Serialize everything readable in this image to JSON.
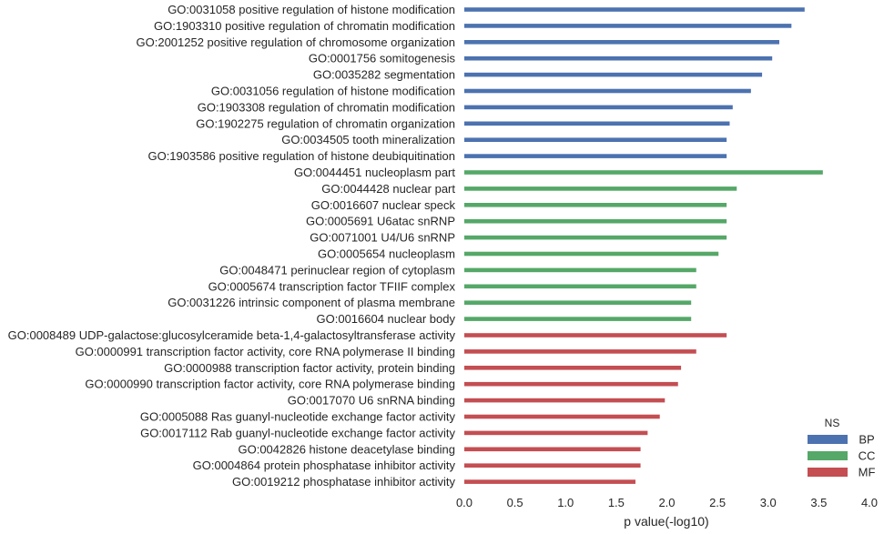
{
  "chart_data": {
    "type": "bar",
    "orientation": "horizontal",
    "xlabel": "p value(-log10)",
    "ylabel": "",
    "xlim": [
      0.0,
      4.0
    ],
    "xticks": [
      "0.0",
      "0.5",
      "1.0",
      "1.5",
      "2.0",
      "2.5",
      "3.0",
      "3.5",
      "4.0"
    ],
    "grid": false,
    "legend": {
      "title": "NS",
      "placement": "bottom-right",
      "entries": [
        {
          "name": "BP",
          "color": "#4C72B0"
        },
        {
          "name": "CC",
          "color": "#55A868"
        },
        {
          "name": "MF",
          "color": "#C44E52"
        }
      ]
    },
    "categories": [
      {
        "label": "GO:0031058 positive regulation of histone modification",
        "ns": "BP",
        "value": 3.36
      },
      {
        "label": "GO:1903310 positive regulation of chromatin modification",
        "ns": "BP",
        "value": 3.23
      },
      {
        "label": "GO:2001252 positive regulation of chromosome organization",
        "ns": "BP",
        "value": 3.11
      },
      {
        "label": "GO:0001756 somitogenesis",
        "ns": "BP",
        "value": 3.04
      },
      {
        "label": "GO:0035282 segmentation",
        "ns": "BP",
        "value": 2.94
      },
      {
        "label": "GO:0031056 regulation of histone modification",
        "ns": "BP",
        "value": 2.83
      },
      {
        "label": "GO:1903308 regulation of chromatin modification",
        "ns": "BP",
        "value": 2.65
      },
      {
        "label": "GO:1902275 regulation of chromatin organization",
        "ns": "BP",
        "value": 2.62
      },
      {
        "label": "GO:0034505 tooth mineralization",
        "ns": "BP",
        "value": 2.59
      },
      {
        "label": "GO:1903586 positive regulation of histone deubiquitination",
        "ns": "BP",
        "value": 2.59
      },
      {
        "label": "GO:0044451 nucleoplasm part",
        "ns": "CC",
        "value": 3.54
      },
      {
        "label": "GO:0044428 nuclear part",
        "ns": "CC",
        "value": 2.69
      },
      {
        "label": "GO:0016607 nuclear speck",
        "ns": "CC",
        "value": 2.59
      },
      {
        "label": "GO:0005691 U6atac snRNP",
        "ns": "CC",
        "value": 2.59
      },
      {
        "label": "GO:0071001 U4/U6 snRNP",
        "ns": "CC",
        "value": 2.59
      },
      {
        "label": "GO:0005654 nucleoplasm",
        "ns": "CC",
        "value": 2.51
      },
      {
        "label": "GO:0048471 perinuclear region of cytoplasm",
        "ns": "CC",
        "value": 2.29
      },
      {
        "label": "GO:0005674 transcription factor TFIIF complex",
        "ns": "CC",
        "value": 2.29
      },
      {
        "label": "GO:0031226 intrinsic component of plasma membrane",
        "ns": "CC",
        "value": 2.24
      },
      {
        "label": "GO:0016604 nuclear body",
        "ns": "CC",
        "value": 2.24
      },
      {
        "label": "GO:0008489 UDP-galactose:glucosylceramide beta-1,4-galactosyltransferase activity",
        "ns": "MF",
        "value": 2.59
      },
      {
        "label": "GO:0000991 transcription factor activity, core RNA polymerase II binding",
        "ns": "MF",
        "value": 2.29
      },
      {
        "label": "GO:0000988 transcription factor activity, protein binding",
        "ns": "MF",
        "value": 2.14
      },
      {
        "label": "GO:0000990 transcription factor activity, core RNA polymerase binding",
        "ns": "MF",
        "value": 2.11
      },
      {
        "label": "GO:0017070 U6 snRNA binding",
        "ns": "MF",
        "value": 1.98
      },
      {
        "label": "GO:0005088 Ras guanyl-nucleotide exchange factor activity",
        "ns": "MF",
        "value": 1.93
      },
      {
        "label": "GO:0017112 Rab guanyl-nucleotide exchange factor activity",
        "ns": "MF",
        "value": 1.81
      },
      {
        "label": "GO:0042826 histone deacetylase binding",
        "ns": "MF",
        "value": 1.74
      },
      {
        "label": "GO:0004864 protein phosphatase inhibitor activity",
        "ns": "MF",
        "value": 1.74
      },
      {
        "label": "GO:0019212 phosphatase inhibitor activity",
        "ns": "MF",
        "value": 1.69
      }
    ]
  }
}
